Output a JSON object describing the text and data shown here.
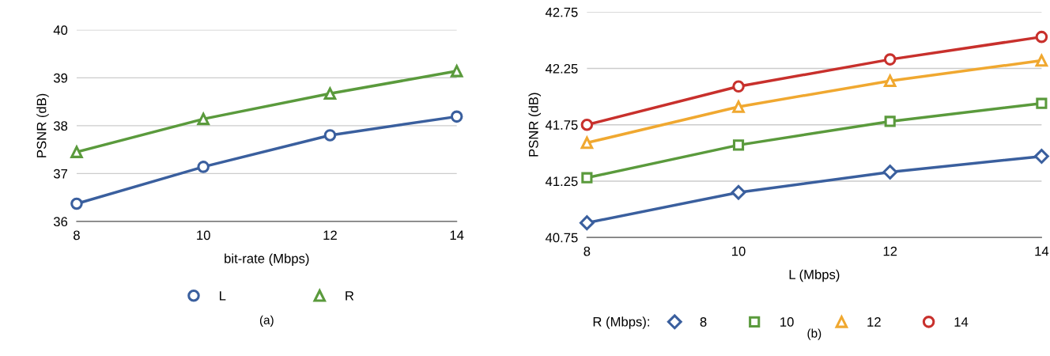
{
  "chart_data": [
    {
      "type": "line",
      "xlabel": "bit-rate (Mbps)",
      "ylabel": "PSNR (dB)",
      "x": [
        8,
        10,
        12,
        14
      ],
      "xlim": [
        8,
        14
      ],
      "xticks": [
        8,
        10,
        12,
        14
      ],
      "ylim": [
        36,
        40
      ],
      "yticks": [
        36,
        37,
        38,
        39,
        40
      ],
      "grid": "y",
      "legend": "bottom",
      "annotations": [
        "(a)"
      ],
      "series": [
        {
          "name": "L",
          "color": "#3a5f9e",
          "marker": "circle",
          "values": [
            36.37,
            37.14,
            37.8,
            38.19
          ]
        },
        {
          "name": "R",
          "color": "#5a9a3c",
          "marker": "triangle",
          "values": [
            37.45,
            38.14,
            38.67,
            39.14
          ]
        }
      ]
    },
    {
      "type": "line",
      "xlabel": "L (Mbps)",
      "ylabel": "PSNR (dB)",
      "legend_title": "R (Mbps):",
      "x": [
        8,
        10,
        12,
        14
      ],
      "xlim": [
        8,
        14
      ],
      "xticks": [
        8,
        10,
        12,
        14
      ],
      "ylim": [
        40.75,
        42.75
      ],
      "yticks": [
        40.75,
        41.25,
        41.75,
        42.25,
        42.75
      ],
      "grid": "y",
      "legend": "bottom",
      "annotations": [
        "(b)"
      ],
      "series": [
        {
          "name": "8",
          "color": "#3a5f9e",
          "marker": "diamond",
          "values": [
            40.88,
            41.15,
            41.33,
            41.47
          ]
        },
        {
          "name": "10",
          "color": "#5a9a3c",
          "marker": "square",
          "values": [
            41.28,
            41.57,
            41.78,
            41.94
          ]
        },
        {
          "name": "12",
          "color": "#f0a830",
          "marker": "triangle",
          "values": [
            41.59,
            41.91,
            42.14,
            42.32
          ]
        },
        {
          "name": "14",
          "color": "#c8302c",
          "marker": "circle",
          "values": [
            41.75,
            42.09,
            42.33,
            42.53
          ]
        }
      ]
    }
  ]
}
